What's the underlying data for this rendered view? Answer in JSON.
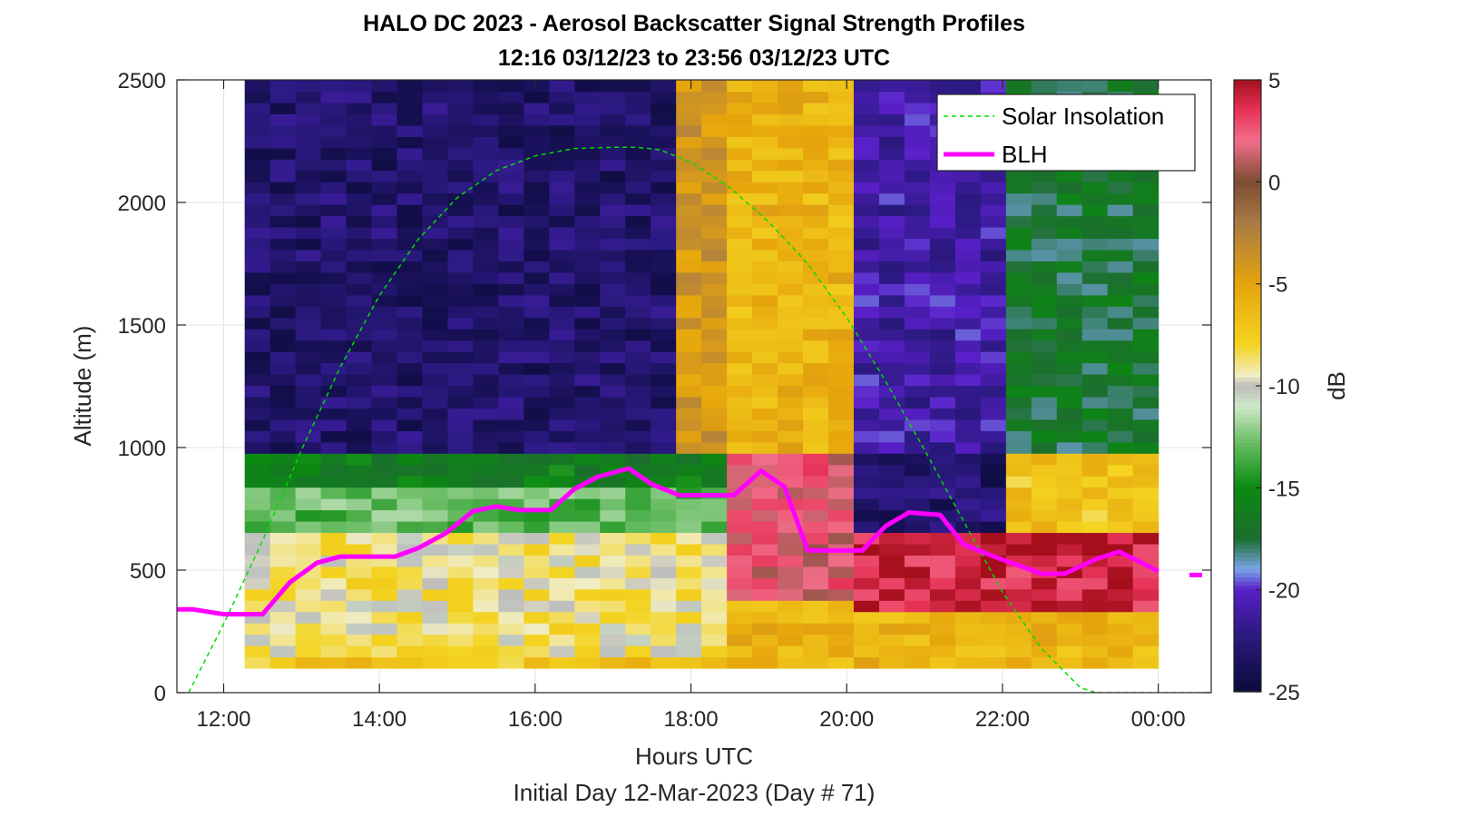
{
  "chart_data": {
    "type": "heatmap",
    "title": "HALO DC 2023 - Aerosol Backscatter Signal Strength Profiles",
    "subtitle": "12:16 03/12/23 to 23:56 03/12/23  UTC",
    "xlabel": "Hours UTC",
    "footer": "Initial Day 12-Mar-2023 (Day # 71)",
    "ylabel": "Altitude (m)",
    "xlim_hours": [
      11.4,
      24.68
    ],
    "ylim": [
      0,
      2500
    ],
    "x_ticks": [
      {
        "hour": 12,
        "label": "12:00"
      },
      {
        "hour": 14,
        "label": "14:00"
      },
      {
        "hour": 16,
        "label": "16:00"
      },
      {
        "hour": 18,
        "label": "18:00"
      },
      {
        "hour": 20,
        "label": "20:00"
      },
      {
        "hour": 22,
        "label": "22:00"
      },
      {
        "hour": 24,
        "label": "00:00"
      }
    ],
    "y_ticks": [
      {
        "value": 0,
        "label": "0"
      },
      {
        "value": 500,
        "label": "500"
      },
      {
        "value": 1000,
        "label": "1000"
      },
      {
        "value": 1500,
        "label": "1500"
      },
      {
        "value": 2000,
        "label": "2000"
      },
      {
        "value": 2500,
        "label": "2500"
      }
    ],
    "grid": true,
    "heatmap": {
      "time_start_hour": 12.27,
      "time_end_hour": 24.0,
      "alt_bottom_m": 100,
      "alt_top_m": 2500,
      "value_unit": "dB",
      "regions_dB": [
        {
          "t0": 12.27,
          "t1": 18.6,
          "a0": 1000,
          "a1": 2500,
          "value": -23
        },
        {
          "t0": 12.27,
          "t1": 18.6,
          "a0": 850,
          "a1": 1000,
          "value": -16
        },
        {
          "t0": 12.27,
          "t1": 18.6,
          "a0": 650,
          "a1": 850,
          "value": -13
        },
        {
          "t0": 12.27,
          "t1": 18.6,
          "a0": 150,
          "a1": 650,
          "value": -9
        },
        {
          "t0": 12.27,
          "t1": 18.6,
          "a0": 100,
          "a1": 150,
          "value": -7
        },
        {
          "t0": 17.8,
          "t1": 18.6,
          "a0": 1000,
          "a1": 2500,
          "value": -4
        },
        {
          "t0": 18.6,
          "t1": 20.0,
          "a0": 1000,
          "a1": 2500,
          "value": -6
        },
        {
          "t0": 18.6,
          "t1": 20.0,
          "a0": 400,
          "a1": 1000,
          "value": 2
        },
        {
          "t0": 18.6,
          "t1": 20.0,
          "a0": 100,
          "a1": 400,
          "value": -6
        },
        {
          "t0": 20.0,
          "t1": 21.9,
          "a0": 1000,
          "a1": 2500,
          "value": -21
        },
        {
          "t0": 20.0,
          "t1": 24.0,
          "a0": 350,
          "a1": 650,
          "value": 4
        },
        {
          "t0": 20.0,
          "t1": 24.0,
          "a0": 100,
          "a1": 350,
          "value": -6
        },
        {
          "t0": 21.9,
          "t1": 24.0,
          "a0": 1000,
          "a1": 2500,
          "value": -17
        },
        {
          "t0": 21.9,
          "t1": 24.0,
          "a0": 650,
          "a1": 1000,
          "value": -7
        }
      ]
    },
    "series": [
      {
        "name": "Solar Insolation",
        "style": "dashed",
        "color": "#00dd00",
        "x": [
          11.55,
          12.0,
          12.5,
          13.0,
          13.5,
          14.0,
          14.5,
          15.0,
          15.5,
          16.0,
          16.5,
          17.0,
          17.3,
          17.6,
          18.0,
          18.5,
          19.0,
          19.5,
          20.0,
          20.5,
          21.0,
          21.5,
          22.0,
          22.5,
          23.0,
          23.2,
          24.68
        ],
        "y": [
          0,
          280,
          620,
          990,
          1330,
          1620,
          1850,
          2020,
          2130,
          2190,
          2220,
          2225,
          2225,
          2215,
          2165,
          2060,
          1920,
          1750,
          1530,
          1270,
          990,
          700,
          410,
          180,
          20,
          0,
          0
        ]
      },
      {
        "name": "BLH",
        "style": "solid",
        "color": "#ff00ff",
        "x": [
          11.4,
          11.6,
          12.0,
          12.5,
          12.85,
          13.2,
          13.5,
          13.8,
          14.2,
          14.5,
          14.85,
          15.2,
          15.5,
          15.8,
          16.2,
          16.5,
          16.8,
          17.2,
          17.5,
          17.85,
          18.2,
          18.55,
          18.9,
          19.2,
          19.5,
          19.85,
          20.2,
          20.5,
          20.8,
          21.2,
          21.5,
          21.85,
          22.2,
          22.5,
          22.8,
          23.2,
          23.5,
          23.85,
          24.0
        ],
        "y": [
          340,
          340,
          320,
          320,
          450,
          530,
          555,
          555,
          555,
          590,
          650,
          740,
          760,
          745,
          745,
          830,
          880,
          915,
          850,
          805,
          805,
          805,
          905,
          840,
          580,
          580,
          580,
          680,
          735,
          725,
          605,
          560,
          520,
          485,
          485,
          545,
          575,
          520,
          495
        ],
        "tail_x": [
          24.4,
          24.7
        ],
        "tail_y": [
          480,
          480
        ]
      }
    ],
    "legend": {
      "placement": "top-right",
      "entries": [
        "Solar Insolation",
        "BLH"
      ]
    },
    "colorbar": {
      "label": "dB",
      "range": [
        -25,
        5
      ],
      "ticks": [
        5,
        0,
        -5,
        -10,
        -15,
        -20,
        -25
      ],
      "tick_labels": [
        "5",
        "0",
        "-5",
        "-10",
        "-15",
        "-20",
        "-25"
      ],
      "stops": [
        {
          "value": -25,
          "color": "#0b0b3a"
        },
        {
          "value": -22,
          "color": "#2e1a86"
        },
        {
          "value": -20,
          "color": "#5a1fc9"
        },
        {
          "value": -19,
          "color": "#79a6e8"
        },
        {
          "value": -17.5,
          "color": "#1c6e2e"
        },
        {
          "value": -15,
          "color": "#0a8a10"
        },
        {
          "value": -13,
          "color": "#5fb85a"
        },
        {
          "value": -11,
          "color": "#cfe8c8"
        },
        {
          "value": -10,
          "color": "#bdbdbd"
        },
        {
          "value": -9.5,
          "color": "#f0ecc4"
        },
        {
          "value": -8,
          "color": "#f4d420"
        },
        {
          "value": -5,
          "color": "#e6a40c"
        },
        {
          "value": -2,
          "color": "#a87b45"
        },
        {
          "value": 0,
          "color": "#7c4c32"
        },
        {
          "value": 2,
          "color": "#f26e8a"
        },
        {
          "value": 3.5,
          "color": "#e63357"
        },
        {
          "value": 5,
          "color": "#a50f1c"
        }
      ]
    }
  }
}
